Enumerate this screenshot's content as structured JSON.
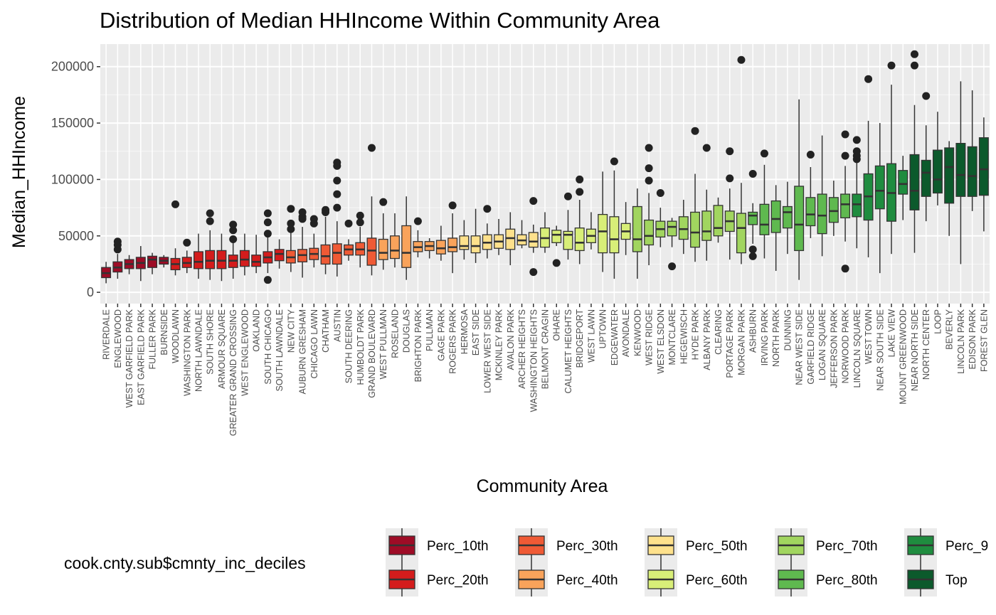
{
  "chart_data": {
    "type": "boxplot",
    "title": "Distribution of Median HHIncome Within Community Area",
    "xlabel": "Community Area",
    "ylabel": "Median_HHIncome",
    "ylim": [
      -10000,
      220000
    ],
    "yticks": [
      0,
      50000,
      100000,
      150000,
      200000
    ],
    "ytick_labels": [
      "0",
      "50000",
      "100000",
      "150000",
      "200000"
    ],
    "background": "#ebebeb",
    "grid": true,
    "legend": {
      "title": "cook.cnty.sub$cmnty_inc_deciles",
      "position": "bottom",
      "entries": [
        {
          "key": "p10",
          "label": "Perc_10th",
          "color": "#9e0c26"
        },
        {
          "key": "p20",
          "label": "Perc_20th",
          "color": "#d41c1c"
        },
        {
          "key": "p30",
          "label": "Perc_30th",
          "color": "#ef5a35"
        },
        {
          "key": "p40",
          "label": "Perc_40th",
          "color": "#f9a35b"
        },
        {
          "key": "p50",
          "label": "Perc_50th",
          "color": "#fee18c"
        },
        {
          "key": "p60",
          "label": "Perc_60th",
          "color": "#d8ee78"
        },
        {
          "key": "p70",
          "label": "Perc_70th",
          "color": "#a1d55f"
        },
        {
          "key": "p80",
          "label": "Perc_80th",
          "color": "#5fb94f"
        },
        {
          "key": "p90",
          "label": "Perc_9",
          "color": "#1f8c3f"
        },
        {
          "key": "top",
          "label": "Top",
          "color": "#0c5a2c"
        }
      ]
    },
    "series": [
      {
        "name": "RIVERDALE",
        "group": "p10",
        "low": 8000,
        "q1": 13000,
        "median": 17000,
        "q3": 22000,
        "high": 27000,
        "outliers": []
      },
      {
        "name": "ENGLEWOOD",
        "group": "p10",
        "low": 12000,
        "q1": 18000,
        "median": 22000,
        "q3": 27000,
        "high": 34000,
        "outliers": [
          38000,
          42000,
          45000
        ]
      },
      {
        "name": "WEST GARFIELD PARK",
        "group": "p10",
        "low": 16000,
        "q1": 21000,
        "median": 25000,
        "q3": 29000,
        "high": 33000,
        "outliers": []
      },
      {
        "name": "EAST GARFIELD PARK",
        "group": "p10",
        "low": 10000,
        "q1": 21000,
        "median": 26000,
        "q3": 31000,
        "high": 41000,
        "outliers": []
      },
      {
        "name": "FULLER PARK",
        "group": "p10",
        "low": 16000,
        "q1": 22000,
        "median": 29000,
        "q3": 32000,
        "high": 35000,
        "outliers": []
      },
      {
        "name": "BURNSIDE",
        "group": "p10",
        "low": 22000,
        "q1": 25000,
        "median": 28000,
        "q3": 31000,
        "high": 33000,
        "outliers": []
      },
      {
        "name": "WOODLAWN",
        "group": "p20",
        "low": 15000,
        "q1": 20000,
        "median": 25000,
        "q3": 30000,
        "high": 39000,
        "outliers": [
          78000
        ]
      },
      {
        "name": "WASHINGTON PARK",
        "group": "p20",
        "low": 17000,
        "q1": 22000,
        "median": 26000,
        "q3": 31000,
        "high": 37000,
        "outliers": [
          44000
        ]
      },
      {
        "name": "NORTH LAWNDALE",
        "group": "p20",
        "low": 12000,
        "q1": 21000,
        "median": 27000,
        "q3": 36000,
        "high": 52000,
        "outliers": []
      },
      {
        "name": "SOUTH SHORE",
        "group": "p20",
        "low": 11000,
        "q1": 21000,
        "median": 28000,
        "q3": 37000,
        "high": 55000,
        "outliers": [
          63000,
          70000
        ]
      },
      {
        "name": "ARMOUR SQUARE",
        "group": "p20",
        "low": 10000,
        "q1": 21000,
        "median": 28000,
        "q3": 37000,
        "high": 52000,
        "outliers": []
      },
      {
        "name": "GREATER GRAND CROSSING",
        "group": "p20",
        "low": 12000,
        "q1": 22000,
        "median": 28000,
        "q3": 33000,
        "high": 44000,
        "outliers": [
          47000,
          55000,
          60000
        ]
      },
      {
        "name": "WEST ENGLEWOOD",
        "group": "p20",
        "low": 15000,
        "q1": 23000,
        "median": 29000,
        "q3": 37000,
        "high": 52000,
        "outliers": []
      },
      {
        "name": "OAKLAND",
        "group": "p20",
        "low": 17000,
        "q1": 23000,
        "median": 27000,
        "q3": 33000,
        "high": 51000,
        "outliers": []
      },
      {
        "name": "SOUTH CHICAGO",
        "group": "p20",
        "low": 17000,
        "q1": 26000,
        "median": 31000,
        "q3": 36000,
        "high": 50000,
        "outliers": [
          11000,
          52000,
          62000,
          70000
        ]
      },
      {
        "name": "SOUTH LAWNDALE",
        "group": "p20",
        "low": 21000,
        "q1": 28000,
        "median": 34000,
        "q3": 38000,
        "high": 47000,
        "outliers": []
      },
      {
        "name": "NEW CITY",
        "group": "p30",
        "low": 18000,
        "q1": 26000,
        "median": 31000,
        "q3": 37000,
        "high": 53000,
        "outliers": [
          56000,
          61000,
          74000
        ]
      },
      {
        "name": "AUBURN GRESHAM",
        "group": "p30",
        "low": 13000,
        "q1": 27000,
        "median": 33000,
        "q3": 38000,
        "high": 58000,
        "outliers": [
          65000,
          67000,
          71000
        ]
      },
      {
        "name": "CHICAGO LAWN",
        "group": "p30",
        "low": 22000,
        "q1": 29000,
        "median": 34000,
        "q3": 39000,
        "high": 52000,
        "outliers": [
          61000,
          65000
        ]
      },
      {
        "name": "CHATHAM",
        "group": "p30",
        "low": 16000,
        "q1": 25000,
        "median": 32000,
        "q3": 42000,
        "high": 67000,
        "outliers": [
          71000,
          73000
        ]
      },
      {
        "name": "AUSTIN",
        "group": "p30",
        "low": 14000,
        "q1": 25000,
        "median": 35000,
        "q3": 43000,
        "high": 63000,
        "outliers": [
          75000,
          87000,
          99000,
          112000,
          115000
        ]
      },
      {
        "name": "SOUTH DEERING",
        "group": "p30",
        "low": 28000,
        "q1": 33000,
        "median": 38000,
        "q3": 42000,
        "high": 47000,
        "outliers": [
          61000
        ]
      },
      {
        "name": "HUMBOLDT PARK",
        "group": "p30",
        "low": 22000,
        "q1": 33000,
        "median": 38000,
        "q3": 44000,
        "high": 58000,
        "outliers": [
          62000,
          68000
        ]
      },
      {
        "name": "GRAND BOULEVARD",
        "group": "p30",
        "low": 15000,
        "q1": 24000,
        "median": 37000,
        "q3": 48000,
        "high": 85000,
        "outliers": [
          128000
        ]
      },
      {
        "name": "WEST PULLMAN",
        "group": "p40",
        "low": 20000,
        "q1": 29000,
        "median": 35000,
        "q3": 47000,
        "high": 70000,
        "outliers": [
          80000
        ]
      },
      {
        "name": "ROSELAND",
        "group": "p40",
        "low": 22000,
        "q1": 30000,
        "median": 37000,
        "q3": 50000,
        "high": 70000,
        "outliers": []
      },
      {
        "name": "DOUGLAS",
        "group": "p40",
        "low": 11000,
        "q1": 22000,
        "median": 35000,
        "q3": 59000,
        "high": 85000,
        "outliers": []
      },
      {
        "name": "BRIGHTON PARK",
        "group": "p40",
        "low": 31000,
        "q1": 36000,
        "median": 40000,
        "q3": 45000,
        "high": 55000,
        "outliers": [
          63000
        ]
      },
      {
        "name": "PULLMAN",
        "group": "p40",
        "low": 30000,
        "q1": 37000,
        "median": 41000,
        "q3": 45000,
        "high": 48000,
        "outliers": []
      },
      {
        "name": "GAGE PARK",
        "group": "p40",
        "low": 28000,
        "q1": 34000,
        "median": 39000,
        "q3": 46000,
        "high": 59000,
        "outliers": []
      },
      {
        "name": "ROGERS PARK",
        "group": "p40",
        "low": 17000,
        "q1": 36000,
        "median": 40000,
        "q3": 48000,
        "high": 70000,
        "outliers": [
          77000
        ]
      },
      {
        "name": "HERMOSA",
        "group": "p50",
        "low": 29000,
        "q1": 38000,
        "median": 41000,
        "q3": 50000,
        "high": 64000,
        "outliers": []
      },
      {
        "name": "EAST SIDE",
        "group": "p50",
        "low": 26000,
        "q1": 35000,
        "median": 41000,
        "q3": 50000,
        "high": 74000,
        "outliers": []
      },
      {
        "name": "LOWER WEST SIDE",
        "group": "p50",
        "low": 30000,
        "q1": 38000,
        "median": 44000,
        "q3": 51000,
        "high": 61000,
        "outliers": [
          74000
        ]
      },
      {
        "name": "MCKINLEY PARK",
        "group": "p50",
        "low": 33000,
        "q1": 39000,
        "median": 45000,
        "q3": 51000,
        "high": 65000,
        "outliers": []
      },
      {
        "name": "AVALON PARK",
        "group": "p50",
        "low": 24000,
        "q1": 38000,
        "median": 48000,
        "q3": 56000,
        "high": 71000,
        "outliers": []
      },
      {
        "name": "ARCHER HEIGHTS",
        "group": "p50",
        "low": 39000,
        "q1": 42000,
        "median": 46000,
        "q3": 51000,
        "high": 64000,
        "outliers": []
      },
      {
        "name": "WASHINGTON HEIGHTS",
        "group": "p50",
        "low": 35000,
        "q1": 40000,
        "median": 45000,
        "q3": 53000,
        "high": 60000,
        "outliers": [
          18000,
          81000
        ]
      },
      {
        "name": "BELMONT CRAGIN",
        "group": "p60",
        "low": 35000,
        "q1": 40000,
        "median": 48000,
        "q3": 57000,
        "high": 71000,
        "outliers": []
      },
      {
        "name": "OHARE",
        "group": "p60",
        "low": 41000,
        "q1": 44000,
        "median": 51000,
        "q3": 55000,
        "high": 59000,
        "outliers": [
          26000
        ]
      },
      {
        "name": "CALUMET HEIGHTS",
        "group": "p60",
        "low": 29000,
        "q1": 38000,
        "median": 51000,
        "q3": 54000,
        "high": 73000,
        "outliers": [
          85000
        ]
      },
      {
        "name": "BRIDGEPORT",
        "group": "p60",
        "low": 25000,
        "q1": 37000,
        "median": 44000,
        "q3": 57000,
        "high": 82000,
        "outliers": [
          89000,
          100000
        ]
      },
      {
        "name": "WEST LAWN",
        "group": "p60",
        "low": 38000,
        "q1": 44000,
        "median": 50000,
        "q3": 56000,
        "high": 71000,
        "outliers": []
      },
      {
        "name": "UPTOWN",
        "group": "p60",
        "low": 18000,
        "q1": 35000,
        "median": 54000,
        "q3": 69000,
        "high": 107000,
        "outliers": []
      },
      {
        "name": "EDGEWATER",
        "group": "p60",
        "low": 12000,
        "q1": 35000,
        "median": 47000,
        "q3": 67000,
        "high": 108000,
        "outliers": [
          116000
        ]
      },
      {
        "name": "AVONDALE",
        "group": "p60",
        "low": 33000,
        "q1": 47000,
        "median": 54000,
        "q3": 61000,
        "high": 80000,
        "outliers": []
      },
      {
        "name": "KENWOOD",
        "group": "p70",
        "low": 12000,
        "q1": 36000,
        "median": 47000,
        "q3": 76000,
        "high": 92000,
        "outliers": []
      },
      {
        "name": "WEST RIDGE",
        "group": "p70",
        "low": 24000,
        "q1": 42000,
        "median": 50000,
        "q3": 64000,
        "high": 88000,
        "outliers": [
          99000,
          110000,
          128000
        ]
      },
      {
        "name": "WEST ELSDON",
        "group": "p70",
        "low": 40000,
        "q1": 49000,
        "median": 56000,
        "q3": 63000,
        "high": 75000,
        "outliers": [
          88000
        ]
      },
      {
        "name": "MONTCLARE",
        "group": "p70",
        "low": 40000,
        "q1": 50000,
        "median": 58000,
        "q3": 63000,
        "high": 66000,
        "outliers": [
          23000
        ]
      },
      {
        "name": "HEGEWISCH",
        "group": "p70",
        "low": 34000,
        "q1": 47000,
        "median": 56000,
        "q3": 67000,
        "high": 82000,
        "outliers": []
      },
      {
        "name": "HYDE PARK",
        "group": "p70",
        "low": 27000,
        "q1": 40000,
        "median": 53000,
        "q3": 71000,
        "high": 105000,
        "outliers": [
          143000
        ]
      },
      {
        "name": "ALBANY PARK",
        "group": "p70",
        "low": 28000,
        "q1": 46000,
        "median": 54000,
        "q3": 72000,
        "high": 91000,
        "outliers": [
          128000
        ]
      },
      {
        "name": "CLEARING",
        "group": "p70",
        "low": 44000,
        "q1": 50000,
        "median": 57000,
        "q3": 77000,
        "high": 84000,
        "outliers": []
      },
      {
        "name": "PORTAGE PARK",
        "group": "p70",
        "low": 29000,
        "q1": 54000,
        "median": 63000,
        "q3": 72000,
        "high": 92000,
        "outliers": [
          101000,
          125000
        ]
      },
      {
        "name": "MORGAN PARK",
        "group": "p70",
        "low": 25000,
        "q1": 35000,
        "median": 57000,
        "q3": 70000,
        "high": 97000,
        "outliers": [
          206000
        ]
      },
      {
        "name": "ASHBURN",
        "group": "p80",
        "low": 43000,
        "q1": 60000,
        "median": 68000,
        "q3": 71000,
        "high": 79000,
        "outliers": [
          32000,
          38000,
          105000
        ]
      },
      {
        "name": "IRVING PARK",
        "group": "p80",
        "low": 30000,
        "q1": 51000,
        "median": 60000,
        "q3": 78000,
        "high": 113000,
        "outliers": [
          123000
        ]
      },
      {
        "name": "NORTH PARK",
        "group": "p80",
        "low": 19000,
        "q1": 53000,
        "median": 65000,
        "q3": 81000,
        "high": 95000,
        "outliers": []
      },
      {
        "name": "DUNNING",
        "group": "p80",
        "low": 34000,
        "q1": 57000,
        "median": 71000,
        "q3": 76000,
        "high": 98000,
        "outliers": []
      },
      {
        "name": "NEAR WEST SIDE",
        "group": "p80",
        "low": 11000,
        "q1": 37000,
        "median": 60000,
        "q3": 94000,
        "high": 171000,
        "outliers": []
      },
      {
        "name": "GARFIELD RIDGE",
        "group": "p80",
        "low": 48000,
        "q1": 59000,
        "median": 69000,
        "q3": 84000,
        "high": 111000,
        "outliers": [
          122000
        ]
      },
      {
        "name": "LOGAN SQUARE",
        "group": "p80",
        "low": 32000,
        "q1": 52000,
        "median": 68000,
        "q3": 87000,
        "high": 139000,
        "outliers": []
      },
      {
        "name": "JEFFERSON PARK",
        "group": "p80",
        "low": 50000,
        "q1": 62000,
        "median": 72000,
        "q3": 84000,
        "high": 99000,
        "outliers": []
      },
      {
        "name": "NORWOOD PARK",
        "group": "p80",
        "low": 45000,
        "q1": 66000,
        "median": 78000,
        "q3": 87000,
        "high": 112000,
        "outliers": [
          21000,
          121000,
          140000
        ]
      },
      {
        "name": "LINCOLN SQUARE",
        "group": "p90",
        "low": 39000,
        "q1": 67000,
        "median": 78000,
        "q3": 87000,
        "high": 116000,
        "outliers": [
          118000,
          121000,
          125000,
          135000
        ]
      },
      {
        "name": "WEST TOWN",
        "group": "p90",
        "low": 31000,
        "q1": 64000,
        "median": 85000,
        "q3": 105000,
        "high": 152000,
        "outliers": [
          189000
        ]
      },
      {
        "name": "NEAR SOUTH SIDE",
        "group": "p90",
        "low": 17000,
        "q1": 74000,
        "median": 90000,
        "q3": 112000,
        "high": 150000,
        "outliers": []
      },
      {
        "name": "LAKE VIEW",
        "group": "p90",
        "low": 34000,
        "q1": 63000,
        "median": 88000,
        "q3": 114000,
        "high": 184000,
        "outliers": [
          201000
        ]
      },
      {
        "name": "MOUNT GREENWOOD",
        "group": "p90",
        "low": 64000,
        "q1": 87000,
        "median": 96000,
        "q3": 108000,
        "high": 121000,
        "outliers": []
      },
      {
        "name": "NEAR NORTH SIDE",
        "group": "top",
        "low": 35000,
        "q1": 73000,
        "median": 90000,
        "q3": 122000,
        "high": 166000,
        "outliers": [
          201000,
          211000
        ]
      },
      {
        "name": "NORTH CENTER",
        "group": "top",
        "low": 63000,
        "q1": 85000,
        "median": 106000,
        "q3": 117000,
        "high": 148000,
        "outliers": [
          174000
        ]
      },
      {
        "name": "LOOP",
        "group": "top",
        "low": 77000,
        "q1": 88000,
        "median": 100000,
        "q3": 126000,
        "high": 160000,
        "outliers": []
      },
      {
        "name": "BEVERLY",
        "group": "top",
        "low": 50000,
        "q1": 79000,
        "median": 111000,
        "q3": 128000,
        "high": 134000,
        "outliers": []
      },
      {
        "name": "LINCOLN PARK",
        "group": "top",
        "low": 25000,
        "q1": 85000,
        "median": 104000,
        "q3": 132000,
        "high": 187000,
        "outliers": []
      },
      {
        "name": "EDISON PARK",
        "group": "top",
        "low": 72000,
        "q1": 85000,
        "median": 103000,
        "q3": 129000,
        "high": 179000,
        "outliers": []
      },
      {
        "name": "FOREST GLEN",
        "group": "top",
        "low": 54000,
        "q1": 86000,
        "median": 109000,
        "q3": 137000,
        "high": 155000,
        "outliers": []
      }
    ]
  }
}
